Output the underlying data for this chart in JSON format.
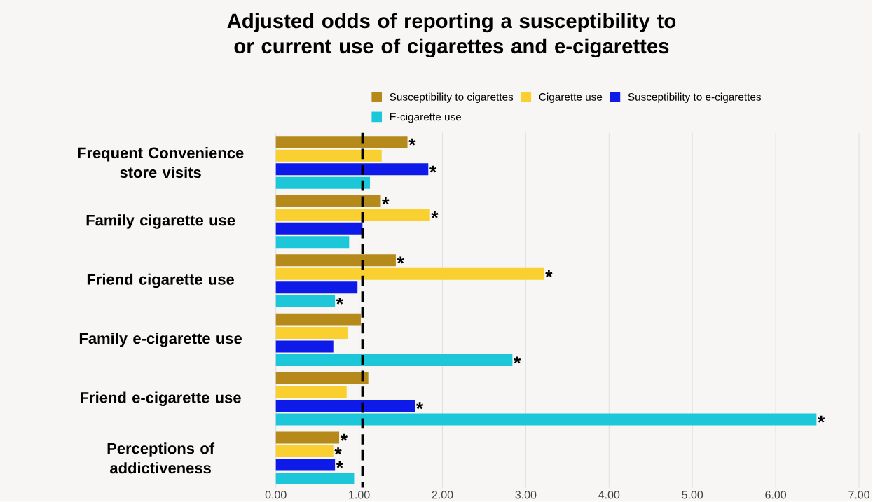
{
  "chart_data": {
    "type": "bar",
    "orientation": "horizontal",
    "title": "Adjusted odds of reporting a susceptibility to or current use of cigarettes and e-cigarettes",
    "categories": [
      "Frequent Convenience store visits",
      "Family cigarette use",
      "Friend cigarette use",
      "Family e-cigarette use",
      "Friend e-cigarette use",
      "Perceptions of addictiveness"
    ],
    "series": [
      {
        "name": "Susceptibility to cigarettes",
        "color": "#b5891a",
        "values": [
          1.58,
          1.26,
          1.44,
          1.02,
          1.11,
          0.76
        ],
        "value_labels": [
          "*",
          "*",
          "*",
          null,
          null,
          "*"
        ]
      },
      {
        "name": "Cigarette use",
        "color": "#f9d030",
        "values": [
          1.27,
          1.85,
          3.22,
          0.86,
          0.85,
          0.69
        ],
        "value_labels": [
          null,
          "*",
          "*",
          null,
          null,
          "*"
        ]
      },
      {
        "name": "Susceptibility to e-cigarettes",
        "color": "#0e1ae8",
        "values": [
          1.83,
          1.04,
          0.98,
          0.69,
          1.67,
          0.71
        ],
        "value_labels": [
          "*",
          null,
          null,
          null,
          "*",
          "*"
        ]
      },
      {
        "name": "E-cigarette use",
        "color": "#1cc7d9",
        "values": [
          1.13,
          0.88,
          0.71,
          2.84,
          6.49,
          0.94
        ],
        "value_labels": [
          null,
          null,
          "*",
          "*",
          "*",
          null
        ]
      }
    ],
    "xlim": [
      0,
      7
    ],
    "xticks": [
      {
        "value": 0,
        "label": "0.00"
      },
      {
        "value": 1,
        "label": "1.00"
      },
      {
        "value": 2,
        "label": "2.00"
      },
      {
        "value": 3,
        "label": "3.00"
      },
      {
        "value": 4,
        "label": "4.00"
      },
      {
        "value": 5,
        "label": "5.00"
      },
      {
        "value": 6,
        "label": "6.00"
      },
      {
        "value": 7,
        "label": "7.00"
      }
    ],
    "ref_lines": [
      {
        "axis": "x",
        "value": 1.04,
        "color": "#000000",
        "line_style": "dashed"
      }
    ],
    "grid": "x",
    "legend": "top"
  }
}
